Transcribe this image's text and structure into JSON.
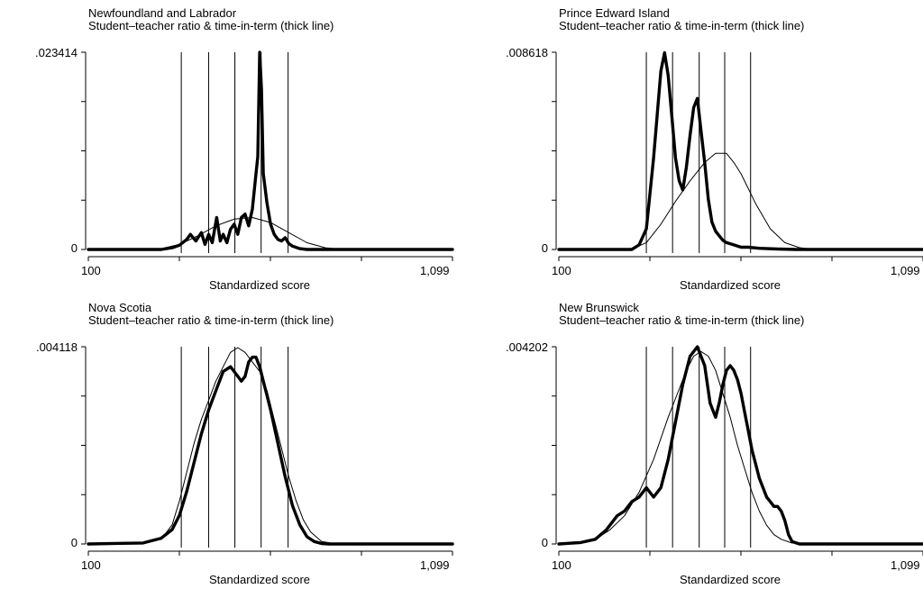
{
  "chart_data": [
    {
      "type": "line",
      "title": "Newfoundland and Labrador",
      "subtitle": "Student–teacher ratio & time-in-term (thick line)",
      "xlabel": "Standardized score",
      "ylabel": "",
      "x_ticks": [
        "100",
        "1,099"
      ],
      "xlim": [
        100,
        1099
      ],
      "ylim": [
        0,
        0.023414
      ],
      "y_ticks": [
        ".023414",
        "0"
      ],
      "vlines": [
        355,
        430,
        502,
        574,
        648
      ],
      "series": [
        {
          "style": "thick",
          "x": [
            100,
            300,
            330,
            350,
            370,
            380,
            395,
            410,
            420,
            430,
            440,
            452,
            462,
            470,
            480,
            490,
            500,
            510,
            520,
            530,
            540,
            550,
            560,
            565,
            570,
            575,
            580,
            590,
            600,
            610,
            620,
            630,
            640,
            650,
            660,
            680,
            700,
            1099
          ],
          "y": [
            0,
            0,
            0.0002,
            0.0005,
            0.0012,
            0.0018,
            0.001,
            0.002,
            0.0006,
            0.0018,
            0.0008,
            0.0038,
            0.001,
            0.0018,
            0.0008,
            0.0024,
            0.003,
            0.0018,
            0.0038,
            0.0042,
            0.0028,
            0.0048,
            0.009,
            0.011,
            0.0234,
            0.019,
            0.009,
            0.0055,
            0.003,
            0.0018,
            0.0012,
            0.001,
            0.0014,
            0.0007,
            0.0004,
            0.0001,
            0,
            0
          ]
        },
        {
          "style": "thin",
          "x": [
            100,
            250,
            300,
            350,
            400,
            450,
            500,
            550,
            600,
            650,
            700,
            750,
            800,
            1099
          ],
          "y": [
            0,
            0,
            0.0001,
            0.0006,
            0.0016,
            0.0028,
            0.0036,
            0.0038,
            0.0032,
            0.002,
            0.0008,
            0.0002,
            0,
            0
          ]
        }
      ]
    },
    {
      "type": "line",
      "title": "Prince Edward Island",
      "subtitle": "Student–teacher ratio & time-in-term (thick line)",
      "xlabel": "Standardized score",
      "ylabel": "",
      "x_ticks": [
        "100",
        "1,099"
      ],
      "xlim": [
        100,
        1099
      ],
      "ylim": [
        0,
        0.008618
      ],
      "y_ticks": [
        ".008618",
        "0"
      ],
      "vlines": [
        340,
        412,
        485,
        555,
        626
      ],
      "series": [
        {
          "style": "thick",
          "x": [
            100,
            300,
            320,
            340,
            360,
            380,
            390,
            400,
            410,
            420,
            430,
            440,
            450,
            460,
            470,
            480,
            490,
            500,
            510,
            520,
            530,
            540,
            550,
            560,
            580,
            600,
            620,
            650,
            700,
            750,
            800,
            1099
          ],
          "y": [
            0,
            0,
            0.0002,
            0.0009,
            0.004,
            0.0078,
            0.0086,
            0.0076,
            0.0058,
            0.004,
            0.003,
            0.0026,
            0.0036,
            0.005,
            0.0062,
            0.0066,
            0.0052,
            0.0038,
            0.0022,
            0.0012,
            0.0008,
            0.0006,
            0.0004,
            0.0003,
            0.0002,
            0.0001,
            0.0001,
            5e-05,
            2e-05,
            0,
            0,
            0
          ]
        },
        {
          "style": "thin",
          "x": [
            100,
            300,
            340,
            380,
            420,
            460,
            500,
            530,
            560,
            580,
            600,
            640,
            680,
            720,
            760,
            800,
            1099
          ],
          "y": [
            0,
            2e-05,
            0.0003,
            0.0011,
            0.0021,
            0.003,
            0.0038,
            0.0042,
            0.0042,
            0.0038,
            0.0033,
            0.002,
            0.0009,
            0.0003,
            8e-05,
            0,
            0
          ]
        }
      ]
    },
    {
      "type": "line",
      "title": "Nova Scotia",
      "subtitle": "Student–teacher ratio & time-in-term (thick line)",
      "xlabel": "Standardized score",
      "ylabel": "",
      "x_ticks": [
        "100",
        "1,099"
      ],
      "xlim": [
        100,
        1099
      ],
      "ylim": [
        0,
        0.004118
      ],
      "y_ticks": [
        ".004118",
        "0"
      ],
      "vlines": [
        355,
        430,
        502,
        574,
        648
      ],
      "series": [
        {
          "style": "thick",
          "x": [
            100,
            250,
            300,
            330,
            350,
            370,
            390,
            410,
            430,
            450,
            470,
            490,
            500,
            510,
            520,
            530,
            540,
            550,
            560,
            570,
            580,
            590,
            600,
            620,
            640,
            660,
            680,
            700,
            720,
            740,
            760,
            800,
            1099
          ],
          "y": [
            0,
            2e-05,
            0.00012,
            0.0003,
            0.0006,
            0.0011,
            0.0017,
            0.0023,
            0.0028,
            0.0032,
            0.0036,
            0.0037,
            0.0036,
            0.0035,
            0.0034,
            0.0035,
            0.0038,
            0.0039,
            0.0039,
            0.0037,
            0.0034,
            0.0031,
            0.0028,
            0.0021,
            0.0014,
            0.0008,
            0.0004,
            0.00015,
            5e-05,
            1e-05,
            0,
            0,
            0
          ]
        },
        {
          "style": "thin",
          "x": [
            100,
            250,
            300,
            330,
            350,
            370,
            390,
            410,
            430,
            450,
            470,
            490,
            510,
            530,
            550,
            570,
            590,
            610,
            630,
            650,
            670,
            690,
            710,
            740,
            780,
            1099
          ],
          "y": [
            0,
            2e-05,
            0.0001,
            0.0004,
            0.0009,
            0.0015,
            0.0021,
            0.0026,
            0.003,
            0.0034,
            0.0037,
            0.004,
            0.0041,
            0.004,
            0.0038,
            0.0036,
            0.0032,
            0.0026,
            0.002,
            0.0014,
            0.0009,
            0.0005,
            0.00025,
            5e-05,
            0,
            0
          ]
        }
      ]
    },
    {
      "type": "line",
      "title": "New Brunswick",
      "subtitle": "Student–teacher ratio & time-in-term (thick line)",
      "xlabel": "Standardized score",
      "ylabel": "",
      "x_ticks": [
        "100",
        "1,099"
      ],
      "xlim": [
        100,
        1099
      ],
      "ylim": [
        0,
        0.004202
      ],
      "y_ticks": [
        ".004202",
        "0"
      ],
      "vlines": [
        340,
        412,
        485,
        555,
        626
      ],
      "series": [
        {
          "style": "thick",
          "x": [
            100,
            160,
            200,
            230,
            260,
            280,
            300,
            320,
            340,
            360,
            380,
            400,
            420,
            440,
            460,
            480,
            500,
            515,
            530,
            540,
            550,
            560,
            570,
            580,
            590,
            600,
            610,
            620,
            630,
            640,
            650,
            660,
            670,
            680,
            690,
            700,
            710,
            720,
            730,
            740,
            760,
            1099
          ],
          "y": [
            0,
            3e-05,
            0.0001,
            0.0003,
            0.0006,
            0.0007,
            0.0009,
            0.001,
            0.0012,
            0.001,
            0.0012,
            0.0018,
            0.0026,
            0.0034,
            0.004,
            0.0042,
            0.0038,
            0.003,
            0.0027,
            0.003,
            0.0034,
            0.0037,
            0.0038,
            0.0037,
            0.0035,
            0.0032,
            0.0028,
            0.0024,
            0.002,
            0.0017,
            0.0014,
            0.0012,
            0.001,
            0.0009,
            0.0008,
            0.0008,
            0.0007,
            0.0005,
            0.0002,
            5e-05,
            0,
            0
          ]
        },
        {
          "style": "thin",
          "x": [
            100,
            160,
            200,
            240,
            280,
            320,
            360,
            400,
            430,
            450,
            470,
            490,
            510,
            530,
            550,
            570,
            590,
            610,
            630,
            650,
            670,
            690,
            710,
            740,
            1099
          ],
          "y": [
            0,
            3e-05,
            0.0001,
            0.0003,
            0.0006,
            0.0011,
            0.0018,
            0.0027,
            0.0033,
            0.0037,
            0.004,
            0.0041,
            0.004,
            0.0037,
            0.0032,
            0.0027,
            0.0021,
            0.0016,
            0.0011,
            0.0007,
            0.0004,
            0.0002,
            0.0001,
            2e-05,
            0
          ]
        }
      ]
    }
  ]
}
